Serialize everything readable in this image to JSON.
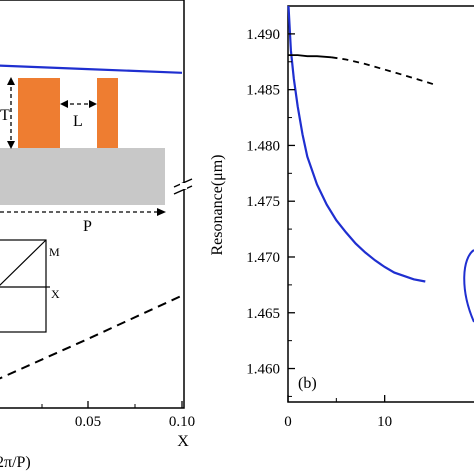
{
  "chart_data": [
    {
      "type": "line",
      "panel": "a",
      "xlabel": "2π/P)",
      "xlabel_suffix": "X",
      "x_ticks": [
        "0.05",
        "0.10"
      ],
      "inset_structure": {
        "labels": {
          "thickness": "T",
          "gap": "L",
          "period": "P"
        }
      },
      "inset_band": {
        "labels": {
          "m": "M",
          "x": "X"
        }
      },
      "series": [
        {
          "style": "solid",
          "color": "#1f2fd0",
          "x": [
            0.0,
            0.05,
            0.1
          ],
          "y": [
            1.4877,
            1.4874,
            1.4871
          ]
        },
        {
          "style": "dashed",
          "color": "#000000",
          "x": [
            0.0,
            0.05,
            0.1
          ],
          "y": [
            1.4622,
            1.4656,
            1.4691
          ]
        }
      ]
    },
    {
      "type": "line",
      "panel": "b",
      "panel_label": "(b)",
      "ylabel": "Resonance(μm)",
      "y_ticks": [
        "1.490",
        "1.485",
        "1.480",
        "1.475",
        "1.470",
        "1.465",
        "1.460"
      ],
      "x_ticks": [
        "0",
        "10"
      ],
      "ylim": [
        1.457,
        1.4925
      ],
      "xlim": [
        0,
        15
      ],
      "series": [
        {
          "style": "solid",
          "color": "#1f2fd0",
          "x": [
            0.05,
            0.3,
            0.6,
            1,
            1.5,
            2,
            3,
            4,
            5,
            6,
            7,
            8,
            9,
            10,
            11,
            12,
            13,
            14.2
          ],
          "y": [
            1.4925,
            1.4885,
            1.486,
            1.4835,
            1.481,
            1.479,
            1.4765,
            1.4747,
            1.4733,
            1.4722,
            1.4712,
            1.4704,
            1.4697,
            1.4691,
            1.4686,
            1.4683,
            1.468,
            1.4678
          ]
        },
        {
          "style": "solid",
          "color": "#000000",
          "x": [
            0,
            1,
            2,
            3,
            4.5
          ],
          "y": [
            1.4881,
            1.4881,
            1.488,
            1.488,
            1.4879
          ]
        },
        {
          "style": "dashed",
          "color": "#000000",
          "x": [
            4.5,
            6,
            8,
            10,
            12,
            13.5,
            15
          ],
          "y": [
            1.4879,
            1.4877,
            1.4873,
            1.4868,
            1.4863,
            1.4859,
            1.4855
          ]
        }
      ]
    }
  ]
}
